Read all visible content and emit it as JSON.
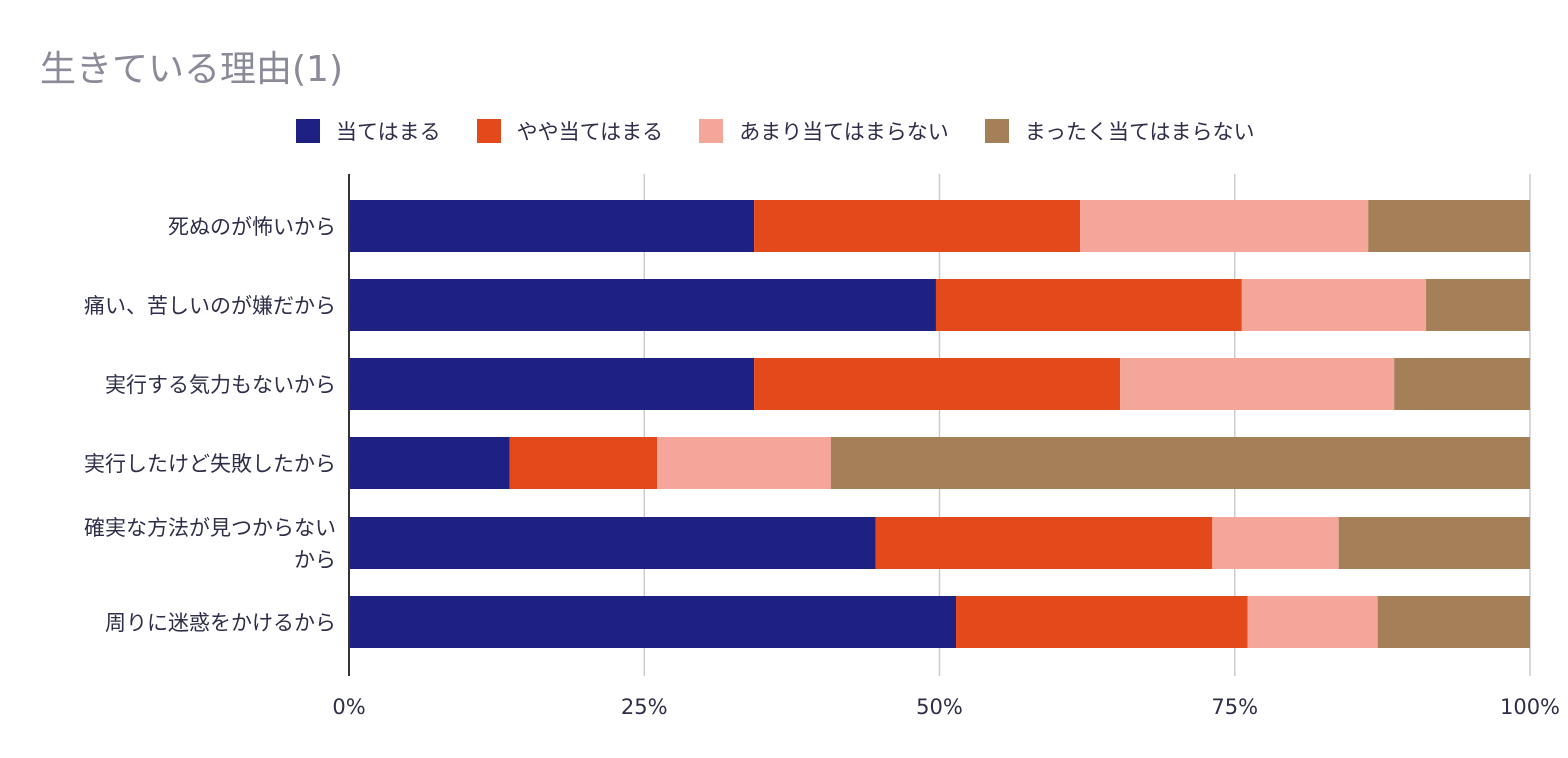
{
  "chart_data": {
    "type": "bar",
    "orientation": "horizontal",
    "stacked": "percent",
    "title": "生きている理由(1)",
    "categories": [
      [
        "死ぬのが怖いから"
      ],
      [
        "痛い、苦しいのが嫌だから"
      ],
      [
        "実行する気力もないから"
      ],
      [
        "実行したけど失敗したから"
      ],
      [
        "確実な方法が見つからない",
        "から"
      ],
      [
        "周りに迷惑をかけるから"
      ]
    ],
    "series": [
      {
        "name": "当てはまる",
        "color": "#1e2082",
        "values": [
          34.3,
          49.7,
          34.3,
          13.6,
          44.6,
          51.4
        ]
      },
      {
        "name": "やや当てはまる",
        "color": "#e4491b",
        "values": [
          27.6,
          25.9,
          31.0,
          12.5,
          28.5,
          24.7
        ]
      },
      {
        "name": "あまり当てはまらない",
        "color": "#f4a69a",
        "values": [
          24.4,
          15.6,
          23.2,
          14.7,
          10.7,
          11.0
        ]
      },
      {
        "name": "まったく当てはまらない",
        "color": "#a57f58",
        "values": [
          13.7,
          8.8,
          11.5,
          59.2,
          16.2,
          12.9
        ]
      }
    ],
    "xticks": [
      "0%",
      "25%",
      "50%",
      "75%",
      "100%"
    ],
    "xlim": [
      0,
      100
    ],
    "grid": true,
    "legend_position": "top"
  }
}
